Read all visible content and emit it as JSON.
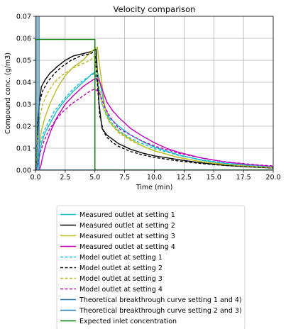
{
  "chart_data": {
    "type": "line",
    "title": "Velocity comparison",
    "xlabel": "Time (min)",
    "ylabel": "Compound conc. (g/m3)",
    "xlim": [
      0,
      20
    ],
    "ylim": [
      0,
      0.07
    ],
    "x_ticks": [
      "0.0",
      "2.5",
      "5.0",
      "7.5",
      "10.0",
      "12.5",
      "15.0",
      "17.5",
      "20.0"
    ],
    "x_tick_values": [
      0,
      2.5,
      5,
      7.5,
      10,
      12.5,
      15,
      17.5,
      20
    ],
    "y_ticks": [
      "0.00",
      "0.01",
      "0.02",
      "0.03",
      "0.04",
      "0.05",
      "0.06",
      "0.07"
    ],
    "y_tick_values": [
      0,
      0.01,
      0.02,
      0.03,
      0.04,
      0.05,
      0.06,
      0.07
    ],
    "grid": true,
    "legend_position": "below",
    "series": [
      {
        "name": "Measured outlet at setting 1",
        "color": "#17becf",
        "dash": "solid",
        "x": [
          0,
          0.15,
          0.3,
          0.5,
          0.8,
          1.2,
          1.8,
          2.5,
          3.2,
          4.0,
          4.8,
          5.2,
          5.5,
          5.8,
          6.2,
          7.0,
          8.0,
          9.0,
          10.0,
          12.0,
          14.0,
          16.0,
          18.0,
          20.0
        ],
        "y": [
          0,
          0.001,
          0.005,
          0.012,
          0.017,
          0.021,
          0.027,
          0.032,
          0.036,
          0.04,
          0.044,
          0.045,
          0.038,
          0.029,
          0.024,
          0.02,
          0.016,
          0.013,
          0.0105,
          0.007,
          0.0045,
          0.003,
          0.002,
          0.0013
        ]
      },
      {
        "name": "Measured outlet at setting 2",
        "color": "#000000",
        "dash": "solid",
        "x": [
          0,
          0.1,
          0.2,
          0.3,
          0.5,
          0.8,
          1.2,
          1.8,
          2.5,
          3.2,
          4.0,
          4.7,
          5.1,
          5.35,
          5.6,
          6.0,
          6.5,
          7.0,
          8.0,
          9.0,
          10.0,
          12.0,
          14.0,
          16.0,
          18.0,
          20.0
        ],
        "y": [
          0,
          0.005,
          0.018,
          0.03,
          0.038,
          0.041,
          0.044,
          0.047,
          0.05,
          0.052,
          0.053,
          0.054,
          0.055,
          0.03,
          0.019,
          0.016,
          0.014,
          0.012,
          0.0095,
          0.0078,
          0.0065,
          0.0048,
          0.0033,
          0.0022,
          0.0015,
          0.001
        ]
      },
      {
        "name": "Measured outlet at setting 3",
        "color": "#bcbd22",
        "dash": "solid",
        "x": [
          0,
          0.15,
          0.3,
          0.5,
          0.8,
          1.2,
          1.8,
          2.5,
          3.2,
          4.0,
          4.7,
          5.2,
          5.5,
          5.8,
          6.2,
          7.0,
          8.0,
          9.0,
          10.0,
          12.0,
          14.0,
          16.0,
          18.0,
          20.0
        ],
        "y": [
          0,
          0.003,
          0.01,
          0.018,
          0.024,
          0.03,
          0.037,
          0.043,
          0.047,
          0.05,
          0.054,
          0.056,
          0.043,
          0.03,
          0.022,
          0.0175,
          0.014,
          0.011,
          0.0088,
          0.0058,
          0.0038,
          0.0025,
          0.0017,
          0.0011
        ]
      },
      {
        "name": "Measured outlet at setting 4",
        "color": "#bf00bf",
        "dash": "solid",
        "x": [
          0,
          0.3,
          0.45,
          0.6,
          0.9,
          1.3,
          1.8,
          2.5,
          3.2,
          4.0,
          4.8,
          5.3,
          5.6,
          6.0,
          6.5,
          7.0,
          8.0,
          9.0,
          10.0,
          11.0,
          12.0,
          14.0,
          16.0,
          18.0,
          20.0
        ],
        "y": [
          0,
          0,
          0.002,
          0.006,
          0.012,
          0.018,
          0.024,
          0.03,
          0.034,
          0.038,
          0.041,
          0.042,
          0.037,
          0.031,
          0.027,
          0.024,
          0.019,
          0.0155,
          0.0125,
          0.01,
          0.0082,
          0.0055,
          0.0037,
          0.0025,
          0.0017
        ]
      },
      {
        "name": "Model outlet at setting 1",
        "color": "#17becf",
        "dash": "dashed",
        "x": [
          0,
          0.15,
          0.3,
          0.6,
          1.0,
          1.6,
          2.2,
          3.0,
          3.8,
          4.6,
          5.0,
          5.3,
          5.6,
          6.0,
          6.5,
          7.0,
          8.0,
          9.0,
          10.0,
          12.0,
          14.0,
          16.0,
          18.0,
          20.0
        ],
        "y": [
          0,
          0.004,
          0.01,
          0.016,
          0.021,
          0.027,
          0.031,
          0.036,
          0.04,
          0.043,
          0.044,
          0.038,
          0.03,
          0.025,
          0.021,
          0.018,
          0.0145,
          0.012,
          0.0098,
          0.0068,
          0.0047,
          0.0032,
          0.0022,
          0.0015
        ]
      },
      {
        "name": "Model outlet at setting 2",
        "color": "#000000",
        "dash": "dashed",
        "x": [
          0,
          0.1,
          0.2,
          0.35,
          0.6,
          1.0,
          1.6,
          2.2,
          3.0,
          3.8,
          4.6,
          5.0,
          5.2,
          5.4,
          5.7,
          6.0,
          6.5,
          7.0,
          8.0,
          9.0,
          10.0,
          12.0,
          14.0,
          16.0,
          18.0,
          20.0
        ],
        "y": [
          0,
          0.01,
          0.022,
          0.031,
          0.036,
          0.04,
          0.044,
          0.047,
          0.05,
          0.052,
          0.053,
          0.054,
          0.04,
          0.025,
          0.018,
          0.015,
          0.0125,
          0.0108,
          0.0085,
          0.007,
          0.0058,
          0.0042,
          0.003,
          0.0021,
          0.0015,
          0.001
        ]
      },
      {
        "name": "Model outlet at setting 3",
        "color": "#bcbd22",
        "dash": "dashed",
        "x": [
          0,
          0.15,
          0.3,
          0.6,
          1.0,
          1.6,
          2.2,
          3.0,
          3.8,
          4.6,
          5.0,
          5.3,
          5.6,
          6.0,
          6.5,
          7.0,
          8.0,
          9.0,
          10.0,
          12.0,
          14.0,
          16.0,
          18.0,
          20.0
        ],
        "y": [
          0,
          0.012,
          0.022,
          0.03,
          0.035,
          0.04,
          0.043,
          0.046,
          0.048,
          0.05,
          0.052,
          0.04,
          0.03,
          0.024,
          0.02,
          0.017,
          0.0135,
          0.011,
          0.0088,
          0.0058,
          0.0039,
          0.0026,
          0.0018,
          0.0012
        ]
      },
      {
        "name": "Model outlet at setting 4",
        "color": "#bf00bf",
        "dash": "dashed",
        "x": [
          0,
          0.2,
          0.4,
          0.7,
          1.1,
          1.6,
          2.2,
          3.0,
          3.8,
          4.6,
          5.0,
          5.4,
          5.8,
          6.3,
          7.0,
          8.0,
          9.0,
          10.0,
          12.0,
          14.0,
          16.0,
          18.0,
          20.0
        ],
        "y": [
          0,
          0.003,
          0.008,
          0.013,
          0.018,
          0.022,
          0.026,
          0.03,
          0.033,
          0.036,
          0.037,
          0.035,
          0.029,
          0.024,
          0.019,
          0.016,
          0.0132,
          0.011,
          0.0078,
          0.0055,
          0.0038,
          0.0027,
          0.0019
        ]
      },
      {
        "name": "Theoretical breakthrough curve setting 1 and 4)",
        "color": "#1f77b4",
        "dash": "solid",
        "x": [
          0,
          0.3,
          0.3,
          0.3,
          0.3,
          20
        ],
        "y": [
          0,
          0,
          0.07,
          0.07,
          0,
          0
        ]
      },
      {
        "name": "Theoretical breakthrough curve setting 2 and 3)",
        "color": "#1f77b4",
        "dash": "solid",
        "x": [
          0,
          0.12,
          0.12,
          0.12,
          0.12,
          20
        ],
        "y": [
          0,
          0,
          0.07,
          0.07,
          0,
          0
        ]
      },
      {
        "name": "Expected inlet concentration",
        "color": "#008000",
        "dash": "solid",
        "x": [
          0,
          0,
          5.0,
          5.0,
          20
        ],
        "y": [
          0,
          0.0595,
          0.0595,
          0,
          0
        ]
      }
    ]
  }
}
